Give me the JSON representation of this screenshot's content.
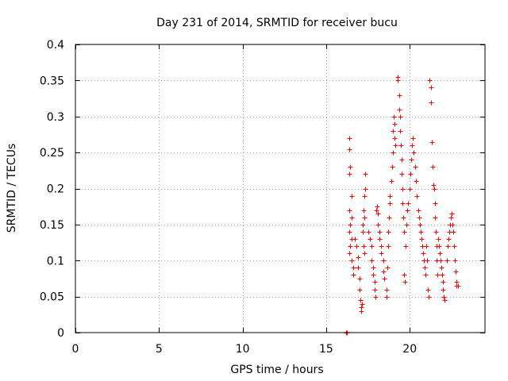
{
  "chart_data": {
    "type": "scatter",
    "title": "Day 231 of 2014, SRMTID for receiver bucu",
    "xlabel": "GPS time / hours",
    "ylabel": "SRMTID / TECUs",
    "xlim": [
      0,
      24.5
    ],
    "ylim": [
      0,
      0.4
    ],
    "xticks": [
      0,
      5,
      10,
      15,
      20
    ],
    "xtick_labels": [
      "0",
      "5",
      "10",
      "15",
      "20"
    ],
    "yticks": [
      0,
      0.05,
      0.1,
      0.15,
      0.2,
      0.25,
      0.3,
      0.35,
      0.4
    ],
    "ytick_labels": [
      "0",
      "0.05",
      "0.1",
      "0.15",
      "0.2",
      "0.25",
      "0.3",
      "0.35",
      "0.4"
    ],
    "grid": true,
    "marker": "+",
    "color": "#ff0000",
    "series": [
      {
        "name": "SRMTID",
        "points": [
          [
            16.2,
            0.0
          ],
          [
            16.25,
            0.0
          ],
          [
            16.4,
            0.27
          ],
          [
            16.4,
            0.255
          ],
          [
            16.45,
            0.23
          ],
          [
            16.4,
            0.22
          ],
          [
            16.5,
            0.19
          ],
          [
            16.4,
            0.17
          ],
          [
            16.5,
            0.16
          ],
          [
            16.45,
            0.15
          ],
          [
            16.4,
            0.14
          ],
          [
            16.5,
            0.13
          ],
          [
            16.45,
            0.12
          ],
          [
            16.4,
            0.11
          ],
          [
            16.5,
            0.1
          ],
          [
            16.6,
            0.09
          ],
          [
            16.6,
            0.08
          ],
          [
            16.7,
            0.13
          ],
          [
            16.8,
            0.12
          ],
          [
            16.9,
            0.105
          ],
          [
            16.9,
            0.09
          ],
          [
            17.0,
            0.075
          ],
          [
            17.0,
            0.06
          ],
          [
            17.05,
            0.045
          ],
          [
            17.1,
            0.035
          ],
          [
            17.1,
            0.03
          ],
          [
            17.15,
            0.04
          ],
          [
            17.2,
            0.15
          ],
          [
            17.25,
            0.17
          ],
          [
            17.3,
            0.19
          ],
          [
            17.35,
            0.2
          ],
          [
            17.35,
            0.22
          ],
          [
            17.3,
            0.16
          ],
          [
            17.2,
            0.14
          ],
          [
            17.25,
            0.12
          ],
          [
            17.3,
            0.11
          ],
          [
            17.5,
            0.14
          ],
          [
            17.6,
            0.13
          ],
          [
            17.7,
            0.12
          ],
          [
            17.7,
            0.1
          ],
          [
            17.8,
            0.09
          ],
          [
            17.8,
            0.08
          ],
          [
            17.9,
            0.07
          ],
          [
            17.9,
            0.06
          ],
          [
            17.95,
            0.05
          ],
          [
            18.0,
            0.17
          ],
          [
            18.05,
            0.175
          ],
          [
            18.1,
            0.165
          ],
          [
            18.1,
            0.15
          ],
          [
            18.2,
            0.14
          ],
          [
            18.2,
            0.13
          ],
          [
            18.3,
            0.12
          ],
          [
            18.3,
            0.11
          ],
          [
            18.4,
            0.1
          ],
          [
            18.4,
            0.085
          ],
          [
            18.45,
            0.075
          ],
          [
            18.6,
            0.06
          ],
          [
            18.6,
            0.05
          ],
          [
            18.65,
            0.09
          ],
          [
            18.7,
            0.12
          ],
          [
            18.7,
            0.14
          ],
          [
            18.75,
            0.16
          ],
          [
            18.8,
            0.18
          ],
          [
            18.8,
            0.19
          ],
          [
            18.9,
            0.21
          ],
          [
            18.95,
            0.23
          ],
          [
            19.0,
            0.25
          ],
          [
            19.0,
            0.28
          ],
          [
            19.05,
            0.3
          ],
          [
            19.1,
            0.29
          ],
          [
            19.1,
            0.27
          ],
          [
            19.15,
            0.26
          ],
          [
            19.3,
            0.35
          ],
          [
            19.3,
            0.355
          ],
          [
            19.35,
            0.33
          ],
          [
            19.35,
            0.31
          ],
          [
            19.4,
            0.3
          ],
          [
            19.4,
            0.28
          ],
          [
            19.45,
            0.26
          ],
          [
            19.5,
            0.24
          ],
          [
            19.5,
            0.22
          ],
          [
            19.55,
            0.2
          ],
          [
            19.55,
            0.18
          ],
          [
            19.6,
            0.16
          ],
          [
            19.65,
            0.14
          ],
          [
            19.65,
            0.08
          ],
          [
            19.7,
            0.07
          ],
          [
            19.75,
            0.12
          ],
          [
            19.8,
            0.15
          ],
          [
            19.85,
            0.17
          ],
          [
            19.9,
            0.18
          ],
          [
            20.0,
            0.2
          ],
          [
            20.05,
            0.22
          ],
          [
            20.1,
            0.24
          ],
          [
            20.15,
            0.26
          ],
          [
            20.2,
            0.27
          ],
          [
            20.25,
            0.25
          ],
          [
            20.3,
            0.23
          ],
          [
            20.35,
            0.21
          ],
          [
            20.4,
            0.19
          ],
          [
            20.5,
            0.17
          ],
          [
            20.55,
            0.16
          ],
          [
            20.6,
            0.15
          ],
          [
            20.65,
            0.14
          ],
          [
            20.7,
            0.13
          ],
          [
            20.75,
            0.12
          ],
          [
            20.8,
            0.11
          ],
          [
            20.85,
            0.1
          ],
          [
            20.9,
            0.09
          ],
          [
            20.95,
            0.08
          ],
          [
            21.0,
            0.12
          ],
          [
            21.05,
            0.1
          ],
          [
            21.1,
            0.06
          ],
          [
            21.15,
            0.05
          ],
          [
            21.2,
            0.35
          ],
          [
            21.25,
            0.34
          ],
          [
            21.25,
            0.32
          ],
          [
            21.3,
            0.265
          ],
          [
            21.35,
            0.23
          ],
          [
            21.4,
            0.205
          ],
          [
            21.45,
            0.2
          ],
          [
            21.5,
            0.18
          ],
          [
            21.5,
            0.16
          ],
          [
            21.55,
            0.14
          ],
          [
            21.6,
            0.12
          ],
          [
            21.6,
            0.1
          ],
          [
            21.65,
            0.08
          ],
          [
            21.7,
            0.13
          ],
          [
            21.75,
            0.12
          ],
          [
            21.8,
            0.11
          ],
          [
            21.85,
            0.1
          ],
          [
            21.9,
            0.09
          ],
          [
            21.95,
            0.08
          ],
          [
            22.0,
            0.07
          ],
          [
            22.0,
            0.06
          ],
          [
            22.05,
            0.05
          ],
          [
            22.1,
            0.045
          ],
          [
            22.2,
            0.1
          ],
          [
            22.25,
            0.12
          ],
          [
            22.3,
            0.13
          ],
          [
            22.35,
            0.14
          ],
          [
            22.4,
            0.15
          ],
          [
            22.45,
            0.16
          ],
          [
            22.5,
            0.165
          ],
          [
            22.55,
            0.15
          ],
          [
            22.6,
            0.14
          ],
          [
            22.65,
            0.12
          ],
          [
            22.7,
            0.1
          ],
          [
            22.75,
            0.085
          ],
          [
            22.8,
            0.07
          ],
          [
            22.8,
            0.065
          ],
          [
            22.9,
            0.065
          ]
        ]
      }
    ]
  }
}
